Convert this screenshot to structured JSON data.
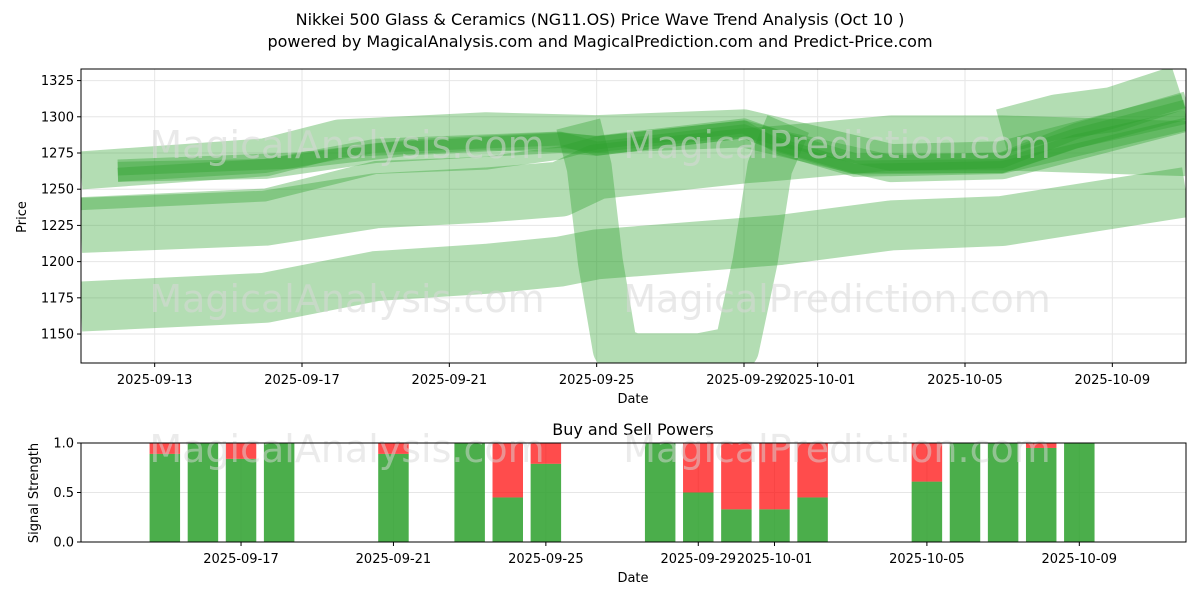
{
  "header": {
    "title_line1": "Nikkei 500 Glass & Ceramics (NG11.OS) Price Wave Trend Analysis (Oct 10 )",
    "title_line2": "powered by MagicalAnalysis.com and MagicalPrediction.com and Predict-Price.com"
  },
  "watermarks": {
    "left": "MagicalAnalysis.com",
    "right": "MagicalPrediction.com"
  },
  "colors": {
    "band": "#2ca02c",
    "buy": "#2ca02c",
    "sell": "#ff0000"
  },
  "chart_data": [
    {
      "type": "area",
      "title": "",
      "xlabel": "Date",
      "ylabel": "Price",
      "x_ticks": [
        "2025-09-13",
        "2025-09-17",
        "2025-09-21",
        "2025-09-25",
        "2025-09-29",
        "2025-10-01",
        "2025-10-05",
        "2025-10-09"
      ],
      "y_ticks": [
        1150,
        1175,
        1200,
        1225,
        1250,
        1275,
        1300,
        1325
      ],
      "xlim": [
        "2025-09-11",
        "2025-10-11"
      ],
      "ylim": [
        1130,
        1333
      ],
      "grid": true,
      "series": [
        {
          "x": [
            "2025-09-11",
            "2025-09-16",
            "2025-09-19",
            "2025-09-22",
            "2025-09-24",
            "2025-09-25",
            "2025-09-29",
            "2025-09-30",
            "2025-10-02",
            "2025-10-06",
            "2025-10-11"
          ],
          "y": [
            1240,
            1246,
            1265,
            1268,
            1275,
            1282,
            1293,
            1278,
            1263,
            1265,
            1295
          ],
          "width": 13
        },
        {
          "x": [
            "2025-09-12",
            "2025-09-16",
            "2025-09-19",
            "2025-09-24",
            "2025-09-25",
            "2025-09-29",
            "2025-09-30",
            "2025-10-02",
            "2025-10-06",
            "2025-10-08",
            "2025-10-11"
          ],
          "y": [
            1262,
            1264,
            1275,
            1282,
            1280,
            1292,
            1283,
            1268,
            1268,
            1285,
            1305
          ],
          "width": 20
        },
        {
          "x": [
            "2025-09-12",
            "2025-09-16",
            "2025-09-19",
            "2025-09-24",
            "2025-09-25",
            "2025-09-29",
            "2025-09-30",
            "2025-10-02",
            "2025-10-06",
            "2025-10-08",
            "2025-10-11"
          ],
          "y": [
            1260,
            1266,
            1280,
            1285,
            1278,
            1290,
            1280,
            1265,
            1266,
            1283,
            1300
          ],
          "width": 14
        },
        {
          "x": [
            "2025-09-12",
            "2025-09-17",
            "2025-09-20",
            "2025-09-24",
            "2025-09-25",
            "2025-09-29",
            "2025-09-30",
            "2025-10-03",
            "2025-10-06",
            "2025-10-08",
            "2025-10-11"
          ],
          "y": [
            1265,
            1270,
            1279,
            1284,
            1281,
            1292,
            1285,
            1268,
            1270,
            1290,
            1312
          ],
          "width": 16
        },
        {
          "x": [
            "2025-09-11",
            "2025-09-16",
            "2025-09-18",
            "2025-09-22",
            "2025-09-25",
            "2025-09-29",
            "2025-10-03",
            "2025-10-06",
            "2025-10-11"
          ],
          "y": [
            1263,
            1272,
            1285,
            1290,
            1288,
            1292,
            1268,
            1270,
            1303
          ],
          "width": 38
        },
        {
          "x": [
            "2025-09-11",
            "2025-09-16",
            "2025-09-19",
            "2025-09-22",
            "2025-09-24",
            "2025-09-25",
            "2025-09-29",
            "2025-09-30",
            "2025-10-03",
            "2025-10-06",
            "2025-10-11"
          ],
          "y": [
            1225,
            1230,
            1242,
            1246,
            1250,
            1262,
            1273,
            1275,
            1282,
            1282,
            1278
          ],
          "width": 55
        },
        {
          "x": [
            "2025-09-11",
            "2025-09-16",
            "2025-09-19",
            "2025-09-22",
            "2025-09-24",
            "2025-09-25",
            "2025-09-29",
            "2025-09-30",
            "2025-10-03",
            "2025-10-06",
            "2025-10-11"
          ],
          "y": [
            1169,
            1175,
            1190,
            1195,
            1200,
            1205,
            1213,
            1215,
            1225,
            1228,
            1248
          ],
          "width": 50
        },
        {
          "x": [
            "2025-09-24.5",
            "2025-09-24.8",
            "2025-09-25.1",
            "2025-09-25.5",
            "2025-09-26",
            "2025-09-27",
            "2025-09-27.8",
            "2025-09-28.8",
            "2025-09-29.3",
            "2025-09-29.7",
            "2025-09-30.2"
          ],
          "y": [
            1295,
            1265,
            1200,
            1140,
            1135,
            1135,
            1135,
            1140,
            1200,
            1265,
            1295
          ],
          "width": 45
        },
        {
          "x": [
            "2025-10-06",
            "2025-10-07.5",
            "2025-10-09",
            "2025-10-10.8"
          ],
          "y": [
            1290,
            1300,
            1305,
            1320
          ],
          "width": 45
        }
      ]
    },
    {
      "type": "bar",
      "title": "Buy and Sell Powers",
      "xlabel": "Date",
      "ylabel": "Signal Strength",
      "x_ticks": [
        "2025-09-17",
        "2025-09-21",
        "2025-09-25",
        "2025-09-29",
        "2025-10-01",
        "2025-10-05",
        "2025-10-09"
      ],
      "y_ticks": [
        "0.0",
        "0.5",
        "1.0"
      ],
      "xlim": [
        "2025-09-12.8",
        "2025-10-11.8"
      ],
      "ylim": [
        0,
        1
      ],
      "legend_series": [
        "Buy",
        "Sell"
      ],
      "x": [
        "2025-09-15",
        "2025-09-16",
        "2025-09-17",
        "2025-09-18",
        "2025-09-21",
        "2025-09-23",
        "2025-09-24",
        "2025-09-25",
        "2025-09-28",
        "2025-09-29",
        "2025-09-30",
        "2025-10-01",
        "2025-10-02",
        "2025-10-05",
        "2025-10-06",
        "2025-10-07",
        "2025-10-08",
        "2025-10-09"
      ],
      "series": [
        {
          "name": "Buy",
          "values": [
            0.89,
            1.0,
            0.84,
            1.0,
            0.89,
            1.0,
            0.45,
            0.79,
            1.0,
            0.5,
            0.33,
            0.33,
            0.45,
            0.61,
            1.0,
            1.0,
            0.95,
            1.0
          ]
        },
        {
          "name": "Sell",
          "values": [
            0.11,
            0.0,
            0.16,
            0.0,
            0.11,
            0.0,
            0.55,
            0.21,
            0.0,
            0.5,
            0.67,
            0.67,
            0.55,
            0.39,
            0.0,
            0.0,
            0.05,
            0.0
          ]
        }
      ]
    }
  ]
}
